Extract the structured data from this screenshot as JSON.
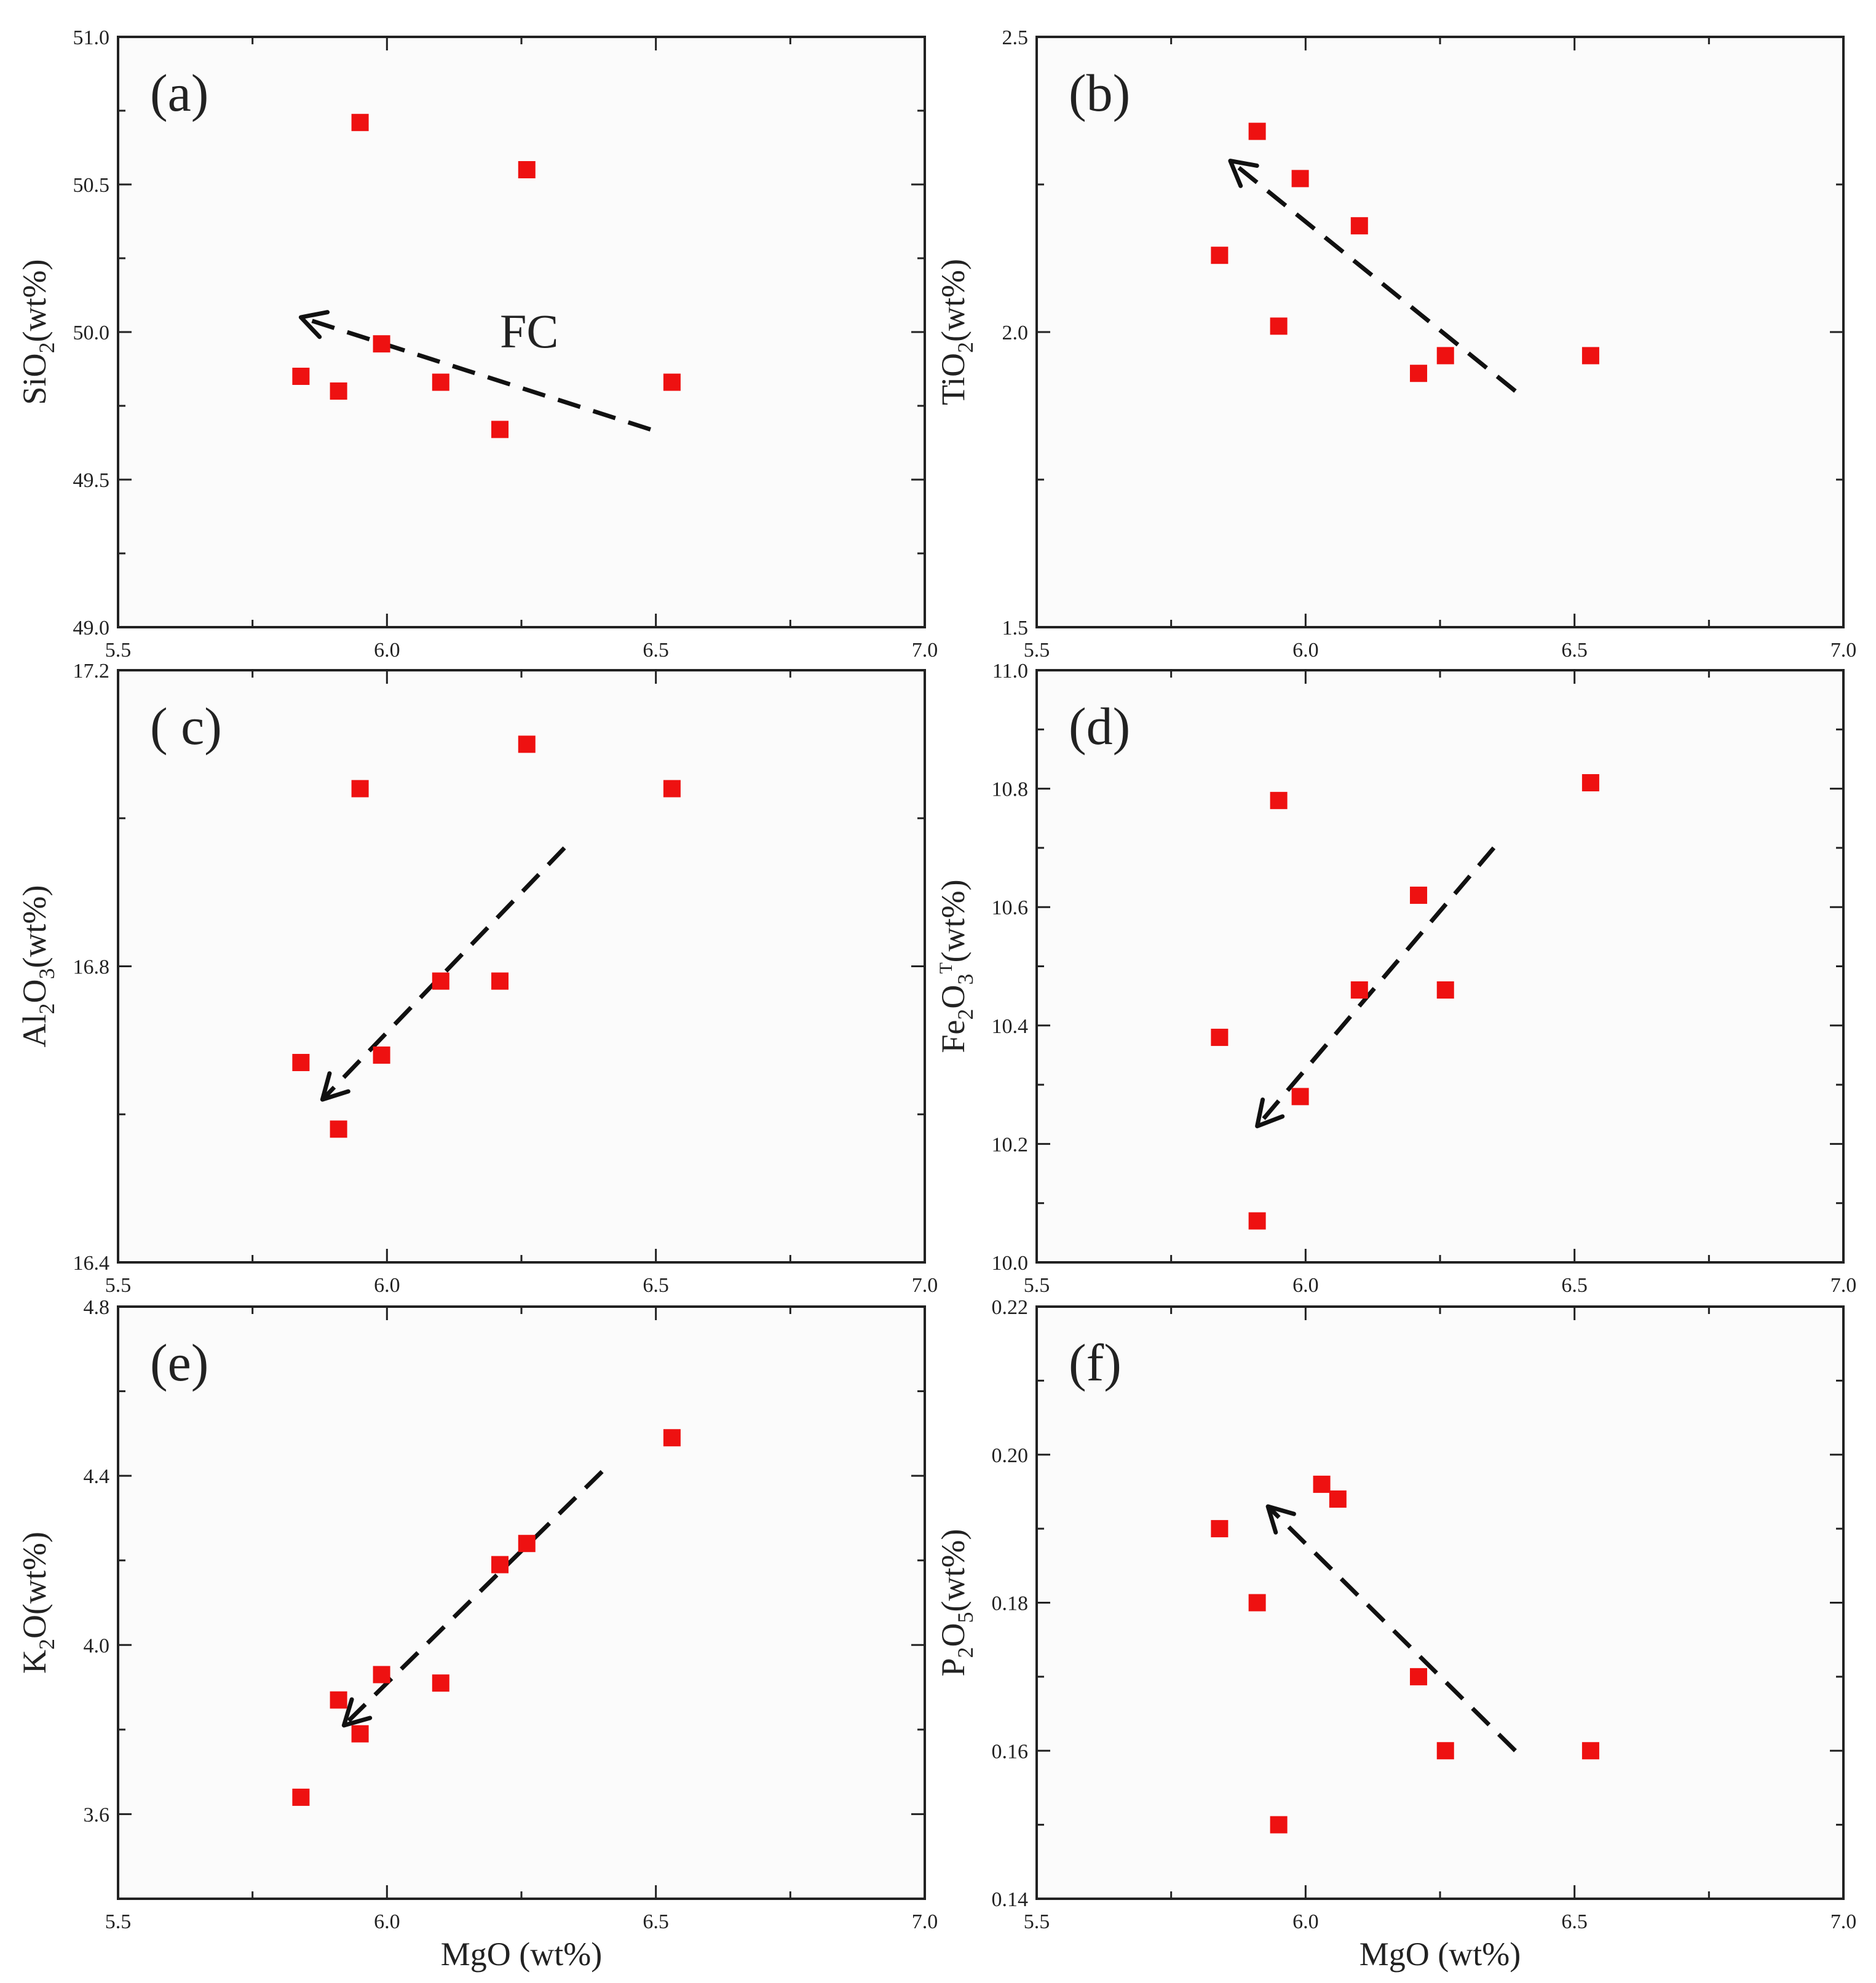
{
  "figure": {
    "marker_color": "#ee1111",
    "line_color": "#111111",
    "background": "#fbfbfb"
  },
  "chart_data": [
    {
      "type": "scatter",
      "panel_label": "(a)",
      "ylabel": {
        "base": "SiO",
        "sub": "2",
        "sup": "",
        "unit": "(wt%)"
      },
      "xlabel": "",
      "xlim": [
        5.5,
        7.0
      ],
      "ylim": [
        49.0,
        51.0
      ],
      "xticks": [
        "5.5",
        "6.0",
        "6.5",
        "7.0"
      ],
      "yticks": [
        "49.0",
        "49.5",
        "50.0",
        "50.5",
        "51.0"
      ],
      "x": [
        5.84,
        5.91,
        5.95,
        5.99,
        6.1,
        6.21,
        6.26,
        6.53
      ],
      "y": [
        49.85,
        49.8,
        50.71,
        49.96,
        49.83,
        49.67,
        50.55,
        49.83
      ],
      "trend": {
        "from": [
          6.49,
          49.67
        ],
        "to": [
          5.84,
          50.05
        ]
      },
      "annotation": {
        "text": "FC",
        "x": 6.21,
        "y": 50.0
      }
    },
    {
      "type": "scatter",
      "panel_label": "(b)",
      "ylabel": {
        "base": "TiO",
        "sub": "2",
        "sup": "",
        "unit": "(wt%)"
      },
      "xlabel": "",
      "xlim": [
        5.5,
        7.0
      ],
      "ylim": [
        1.5,
        2.5
      ],
      "xticks": [
        "5.5",
        "6.0",
        "6.5",
        "7.0"
      ],
      "yticks": [
        "1.5",
        "2.0",
        "2.5"
      ],
      "x": [
        5.84,
        5.91,
        5.95,
        5.99,
        6.1,
        6.21,
        6.26,
        6.53
      ],
      "y": [
        2.13,
        2.34,
        2.01,
        2.26,
        2.18,
        1.93,
        1.96,
        1.96
      ],
      "trend": {
        "from": [
          6.39,
          1.9
        ],
        "to": [
          5.86,
          2.29
        ]
      },
      "annotation": null
    },
    {
      "type": "scatter",
      "panel_label": "( c)",
      "ylabel": {
        "base": "Al",
        "sub": "2",
        "base2": "O",
        "sub2": "3",
        "sup": "",
        "unit": "(wt%)"
      },
      "xlabel": "",
      "xlim": [
        5.5,
        7.0
      ],
      "ylim": [
        16.4,
        17.2
      ],
      "xticks": [
        "5.5",
        "6.0",
        "6.5",
        "7.0"
      ],
      "yticks": [
        "16.4",
        "16.8",
        "17.2"
      ],
      "x": [
        5.84,
        5.91,
        5.95,
        5.99,
        6.1,
        6.21,
        6.26,
        6.53
      ],
      "y": [
        16.67,
        16.58,
        17.04,
        16.68,
        16.78,
        16.78,
        17.1,
        17.04
      ],
      "trend": {
        "from": [
          6.33,
          16.96
        ],
        "to": [
          5.88,
          16.62
        ]
      },
      "annotation": null
    },
    {
      "type": "scatter",
      "panel_label": "(d)",
      "ylabel": {
        "base": "Fe",
        "sub": "2",
        "base2": "O",
        "sub2": "3",
        "sup": "T",
        "unit": "(wt%)"
      },
      "xlabel": "",
      "xlim": [
        5.5,
        7.0
      ],
      "ylim": [
        10.0,
        11.0
      ],
      "xticks": [
        "5.5",
        "6.0",
        "6.5",
        "7.0"
      ],
      "yticks": [
        "10.0",
        "10.2",
        "10.4",
        "10.6",
        "10.8",
        "11.0"
      ],
      "x": [
        5.84,
        5.91,
        5.95,
        5.99,
        6.1,
        6.21,
        6.26,
        6.53
      ],
      "y": [
        10.38,
        10.07,
        10.78,
        10.28,
        10.46,
        10.62,
        10.46,
        10.81
      ],
      "trend": {
        "from": [
          6.35,
          10.7
        ],
        "to": [
          5.91,
          10.23
        ]
      },
      "annotation": null
    },
    {
      "type": "scatter",
      "panel_label": "(e)",
      "ylabel": {
        "base": "K",
        "sub": "2",
        "base2": "O",
        "sub2": "",
        "sup": "",
        "unit": "(wt%)"
      },
      "xlabel": "MgO (wt%)",
      "xlim": [
        5.5,
        7.0
      ],
      "ylim": [
        3.4,
        4.8
      ],
      "xticks": [
        "5.5",
        "6.0",
        "6.5",
        "7.0"
      ],
      "yticks": [
        "3.6",
        "4.0",
        "4.4",
        "4.8"
      ],
      "x": [
        5.84,
        5.91,
        5.95,
        5.99,
        6.1,
        6.21,
        6.26,
        6.53
      ],
      "y": [
        3.64,
        3.87,
        3.79,
        3.93,
        3.91,
        4.19,
        4.24,
        4.49
      ],
      "trend": {
        "from": [
          6.4,
          4.41
        ],
        "to": [
          5.92,
          3.81
        ]
      },
      "annotation": null
    },
    {
      "type": "scatter",
      "panel_label": "(f)",
      "ylabel": {
        "base": "P",
        "sub": "2",
        "base2": "O",
        "sub2": "5",
        "sup": "",
        "unit": "(wt%)"
      },
      "xlabel": "MgO (wt%)",
      "xlim": [
        5.5,
        7.0
      ],
      "ylim": [
        0.14,
        0.22
      ],
      "xticks": [
        "5.5",
        "6.0",
        "6.5",
        "7.0"
      ],
      "yticks": [
        "0.14",
        "0.16",
        "0.18",
        "0.20",
        "0.22"
      ],
      "x": [
        5.84,
        5.91,
        5.95,
        6.03,
        6.06,
        6.21,
        6.26,
        6.53
      ],
      "y": [
        0.19,
        0.18,
        0.15,
        0.196,
        0.194,
        0.17,
        0.16,
        0.16
      ],
      "trend": {
        "from": [
          6.39,
          0.16
        ],
        "to": [
          5.93,
          0.193
        ]
      },
      "annotation": null
    }
  ]
}
